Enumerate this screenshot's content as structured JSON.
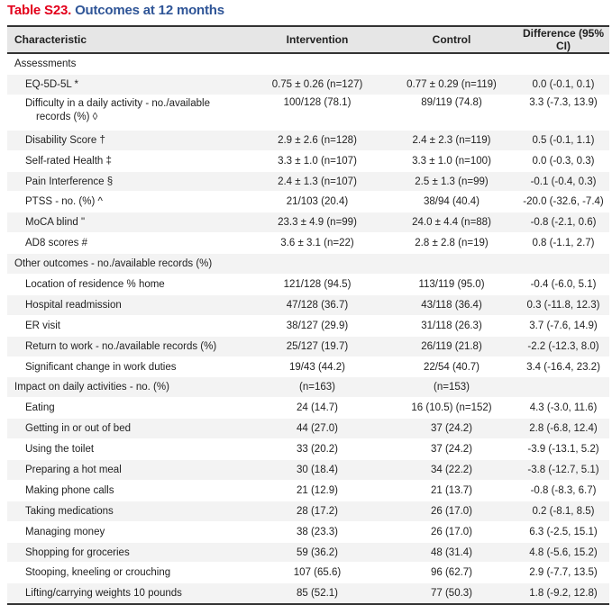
{
  "title": {
    "label": "Table S23.",
    "text": "Outcomes at 12 months"
  },
  "columns": [
    "Characteristic",
    "Intervention",
    "Control",
    "Difference (95% CI)"
  ],
  "rows": [
    {
      "type": "section",
      "cells": [
        "Assessments",
        "",
        "",
        ""
      ]
    },
    {
      "type": "item",
      "cells": [
        "EQ-5D-5L *",
        "0.75 ± 0.26 (n=127)",
        "0.77 ± 0.29 (n=119)",
        "0.0 (-0.1, 0.1)"
      ]
    },
    {
      "type": "item-tall",
      "cells": [
        "Difficulty in a daily activity - no./available",
        "100/128 (78.1)",
        "89/119 (74.8)",
        "3.3 (-7.3, 13.9)"
      ],
      "continuation": "records (%) ◊"
    },
    {
      "type": "item",
      "cells": [
        "Disability Score †",
        "2.9 ± 2.6 (n=128)",
        "2.4 ± 2.3 (n=119)",
        "0.5 (-0.1, 1.1)"
      ]
    },
    {
      "type": "item",
      "cells": [
        "Self-rated Health ‡",
        "3.3 ± 1.0 (n=107)",
        "3.3 ± 1.0 (n=100)",
        "0.0 (-0.3, 0.3)"
      ]
    },
    {
      "type": "item",
      "cells": [
        "Pain Interference §",
        "2.4 ± 1.3 (n=107)",
        "2.5 ± 1.3 (n=99)",
        "-0.1 (-0.4, 0.3)"
      ]
    },
    {
      "type": "item",
      "cells": [
        "PTSS - no. (%) ^",
        "21/103 (20.4)",
        "38/94 (40.4)",
        "-20.0 (-32.6, -7.4)"
      ]
    },
    {
      "type": "item",
      "cells": [
        "MoCA blind \"",
        "23.3 ± 4.9 (n=99)",
        "24.0 ± 4.4 (n=88)",
        "-0.8 (-2.1, 0.6)"
      ]
    },
    {
      "type": "item",
      "cells": [
        "AD8 scores #",
        "3.6 ± 3.1 (n=22)",
        "2.8 ± 2.8 (n=19)",
        "0.8 (-1.1, 2.7)"
      ]
    },
    {
      "type": "section",
      "cells": [
        "Other outcomes - no./available records (%)",
        "",
        "",
        ""
      ]
    },
    {
      "type": "item",
      "cells": [
        "Location of residence % home",
        "121/128 (94.5)",
        "113/119 (95.0)",
        "-0.4 (-6.0, 5.1)"
      ]
    },
    {
      "type": "item",
      "cells": [
        "Hospital readmission",
        "47/128 (36.7)",
        "43/118 (36.4)",
        "0.3 (-11.8, 12.3)"
      ]
    },
    {
      "type": "item",
      "cells": [
        "ER visit",
        "38/127 (29.9)",
        "31/118 (26.3)",
        "3.7 (-7.6, 14.9)"
      ]
    },
    {
      "type": "item",
      "cells": [
        "Return to work - no./available records (%)",
        "25/127 (19.7)",
        "26/119 (21.8)",
        "-2.2 (-12.3, 8.0)"
      ]
    },
    {
      "type": "item",
      "cells": [
        "Significant change in work duties",
        "19/43 (44.2)",
        "22/54 (40.7)",
        "3.4 (-16.4, 23.2)"
      ]
    },
    {
      "type": "section",
      "cells": [
        "Impact on daily activities - no. (%)",
        "(n=163)",
        "(n=153)",
        ""
      ]
    },
    {
      "type": "item",
      "cells": [
        "Eating",
        "24 (14.7)",
        "16 (10.5) (n=152)",
        "4.3 (-3.0, 11.6)"
      ]
    },
    {
      "type": "item",
      "cells": [
        "Getting in or out of bed",
        "44 (27.0)",
        "37 (24.2)",
        "2.8 (-6.8, 12.4)"
      ]
    },
    {
      "type": "item",
      "cells": [
        "Using the toilet",
        "33 (20.2)",
        "37 (24.2)",
        "-3.9 (-13.1, 5.2)"
      ]
    },
    {
      "type": "item",
      "cells": [
        "Preparing a hot meal",
        "30 (18.4)",
        "34 (22.2)",
        "-3.8 (-12.7, 5.1)"
      ]
    },
    {
      "type": "item",
      "cells": [
        "Making phone calls",
        "21 (12.9)",
        "21 (13.7)",
        "-0.8 (-8.3, 6.7)"
      ]
    },
    {
      "type": "item",
      "cells": [
        "Taking medications",
        "28 (17.2)",
        "26 (17.0)",
        "0.2 (-8.1, 8.5)"
      ]
    },
    {
      "type": "item",
      "cells": [
        "Managing money",
        "38 (23.3)",
        "26 (17.0)",
        "6.3 (-2.5, 15.1)"
      ]
    },
    {
      "type": "item",
      "cells": [
        "Shopping for groceries",
        "59 (36.2)",
        "48 (31.4)",
        "4.8 (-5.6, 15.2)"
      ]
    },
    {
      "type": "item",
      "cells": [
        "Stooping, kneeling or crouching",
        "107 (65.6)",
        "96 (62.7)",
        "2.9 (-7.7, 13.5)"
      ]
    },
    {
      "type": "item",
      "cells": [
        "Lifting/carrying weights 10 pounds",
        "85 (52.1)",
        "77 (50.3)",
        "1.8 (-9.2, 12.8)"
      ]
    }
  ],
  "colors": {
    "label": "#e3001b",
    "title": "#2f5597",
    "header_bg": "#e6e6e6",
    "row_shade": "#f3f3f3"
  }
}
